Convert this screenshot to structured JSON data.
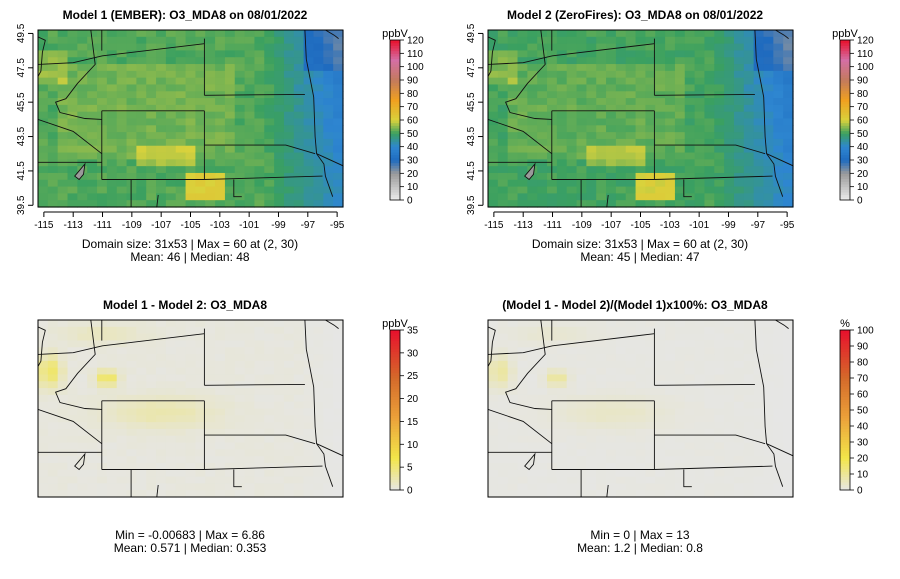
{
  "chart_data": [
    {
      "type": "heatmap",
      "title": "Model 1 (EMBER): O3_MDA8 on 08/01/2022",
      "x_ticks": [
        "-115",
        "-113",
        "-111",
        "-109",
        "-107",
        "-105",
        "-103",
        "-101",
        "-99",
        "-97",
        "-95"
      ],
      "y_ticks": [
        "39.5",
        "41.5",
        "43.5",
        "45.5",
        "47.5",
        "49.5"
      ],
      "xlim": [
        -115.4,
        -94.6
      ],
      "ylim": [
        39.4,
        49.7
      ],
      "colorbar": {
        "unit": "ppbV",
        "ticks": [
          "0",
          "10",
          "20",
          "30",
          "40",
          "50",
          "60",
          "70",
          "80",
          "90",
          "100",
          "110",
          "120"
        ],
        "range": [
          0,
          120
        ],
        "scale": "ozone"
      },
      "field": "ozone_m1",
      "stats": [
        "Domain size: 31x53 | Max = 60 at (2, 30)",
        "Mean: 46 |  Median: 48"
      ]
    },
    {
      "type": "heatmap",
      "title": "Model 2 (ZeroFires): O3_MDA8 on 08/01/2022",
      "x_ticks": [
        "-115",
        "-113",
        "-111",
        "-109",
        "-107",
        "-105",
        "-103",
        "-101",
        "-99",
        "-97",
        "-95"
      ],
      "y_ticks": [
        "39.5",
        "41.5",
        "43.5",
        "45.5",
        "47.5",
        "49.5"
      ],
      "xlim": [
        -115.4,
        -94.6
      ],
      "ylim": [
        39.4,
        49.7
      ],
      "colorbar": {
        "unit": "ppbV",
        "ticks": [
          "0",
          "10",
          "20",
          "30",
          "40",
          "50",
          "60",
          "70",
          "80",
          "90",
          "100",
          "110",
          "120"
        ],
        "range": [
          0,
          120
        ],
        "scale": "ozone"
      },
      "field": "ozone_m2",
      "stats": [
        "Domain size: 31x53 | Max = 60 at (2, 30)",
        "Mean: 45 |  Median: 47"
      ]
    },
    {
      "type": "heatmap",
      "title": "Model 1 - Model 2: O3_MDA8",
      "x_ticks": [],
      "y_ticks": [],
      "xlim": [
        -115.4,
        -94.6
      ],
      "ylim": [
        39.4,
        49.7
      ],
      "colorbar": {
        "unit": "ppbV",
        "ticks": [
          "0",
          "5",
          "10",
          "15",
          "20",
          "25",
          "30",
          "35"
        ],
        "range": [
          0,
          35
        ],
        "scale": "diff"
      },
      "field": "diff_abs",
      "stats": [
        "Min = -0.00683 | Max = 6.86",
        "Mean: 0.571 |  Median: 0.353"
      ]
    },
    {
      "type": "heatmap",
      "title": "(Model 1 - Model 2)/(Model 1)x100%: O3_MDA8",
      "x_ticks": [],
      "y_ticks": [],
      "xlim": [
        -115.4,
        -94.6
      ],
      "ylim": [
        39.4,
        49.7
      ],
      "colorbar": {
        "unit": "%",
        "ticks": [
          "0",
          "10",
          "20",
          "30",
          "40",
          "50",
          "60",
          "70",
          "80",
          "90",
          "100"
        ],
        "range": [
          0,
          100
        ],
        "scale": "diff"
      },
      "field": "diff_pct",
      "stats": [
        "Min = 0 | Max = 13",
        "Mean: 1.2 |  Median: 0.8"
      ]
    }
  ],
  "colors": {
    "ozone_low": "#ededed",
    "ozone_blue": "#2e86d0",
    "ozone_green": "#3aa060",
    "ozone_high": "#e8102c",
    "diff_zero": "#e6e6e6",
    "diff_yellow": "#f2e64a",
    "diff_high": "#e8102c"
  }
}
